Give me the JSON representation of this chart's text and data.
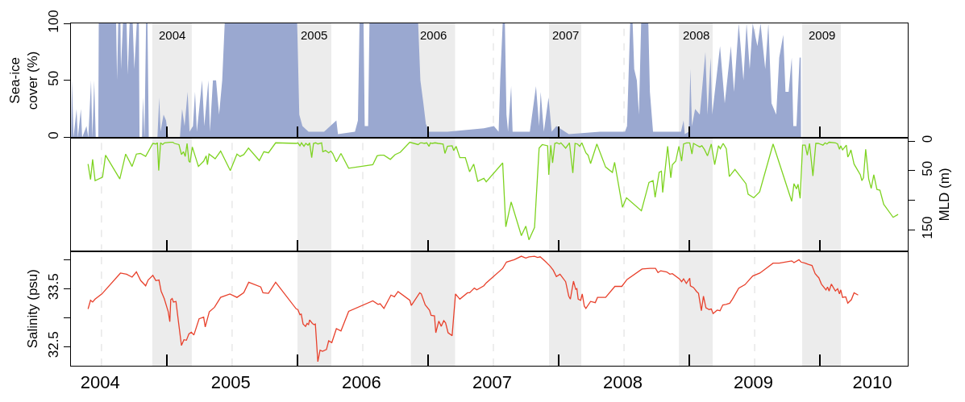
{
  "chart_data": [
    {
      "type": "area",
      "ylabel": "Sea-ice\ncover (%)",
      "color": "#9aa8d0",
      "xlim": [
        2004.266,
        2010.672
      ],
      "ylim": [
        0,
        100
      ],
      "yticks": [
        0,
        50,
        100
      ],
      "tick_labels": "y",
      "xticks": [
        {
          "value": 2005,
          "label": null
        },
        {
          "value": 2006,
          "label": null
        },
        {
          "value": 2007,
          "label": null
        },
        {
          "value": 2008,
          "label": null
        },
        {
          "value": 2009,
          "label": null
        },
        {
          "value": 2010,
          "label": null
        }
      ],
      "bands": [
        {
          "axis": "x",
          "from": 2004.889,
          "to": 2005.191,
          "label": "2004",
          "color": "#ececec"
        },
        {
          "axis": "x",
          "from": 2006.0,
          "to": 2006.259,
          "label": "2005",
          "color": "#ececec"
        },
        {
          "axis": "x",
          "from": 2006.868,
          "to": 2007.207,
          "label": "2006",
          "color": "#ececec"
        },
        {
          "axis": "x",
          "from": 2007.926,
          "to": 2008.173,
          "label": "2007",
          "color": "#ececec"
        },
        {
          "axis": "x",
          "from": 2008.92,
          "to": 2009.179,
          "label": "2008",
          "color": "#ececec"
        },
        {
          "axis": "x",
          "from": 2009.864,
          "to": 2010.16,
          "label": "2009",
          "color": "#ececec"
        }
      ],
      "ref_lines": [
        {
          "axis": "x",
          "value": 2007.5,
          "color": "#dcdcdc",
          "line_style": "dashed"
        },
        {
          "axis": "x",
          "value": 2008.5,
          "color": "#dcdcdc",
          "line_style": "dashed"
        },
        {
          "axis": "x",
          "value": 2009.5,
          "color": "#dcdcdc",
          "line_style": "dashed"
        }
      ],
      "x": [
        2004.267,
        2004.274,
        2004.286,
        2004.309,
        2004.319,
        2004.342,
        2004.352,
        2004.385,
        2004.399,
        2004.42,
        2004.43,
        2004.444,
        2004.456,
        2004.475,
        2004.479,
        2004.612,
        2004.619,
        2004.628,
        2004.645,
        2004.649,
        2004.664,
        2004.692,
        2004.701,
        2004.715,
        2004.739,
        2004.751,
        2004.77,
        2004.786,
        2004.791,
        2004.81,
        2004.817,
        2004.829,
        2004.841,
        2004.852,
        2004.862,
        2004.928,
        2004.942,
        2004.952,
        2004.975,
        2004.994,
        2005.011,
        2005.1,
        2005.117,
        2005.136,
        2005.159,
        2005.174,
        2005.2,
        2005.216,
        2005.23,
        2005.27,
        2005.287,
        2005.318,
        2005.33,
        2005.353,
        2005.377,
        2005.4,
        2005.424,
        2005.443,
        2005.998,
        2006.014,
        2006.038,
        2006.085,
        2006.204,
        2006.298,
        2006.31,
        2006.44,
        2006.463,
        2006.475,
        2006.506,
        2006.515,
        2006.541,
        2006.551,
        2006.924,
        2006.941,
        2006.964,
        2006.983,
        2007.007,
        2007.149,
        2007.427,
        2007.504,
        2007.54,
        2007.552,
        2007.571,
        2007.588,
        2007.6,
        2007.612,
        2007.636,
        2007.647,
        2007.695,
        2007.779,
        2007.826,
        2007.85,
        2007.862,
        2007.886,
        2007.922,
        2007.946,
        2007.982,
        2008.077,
        2008.316,
        2008.507,
        2008.523,
        2008.547,
        2008.566,
        2008.578,
        2008.598,
        2008.614,
        2008.631,
        2008.686,
        2008.698,
        2008.722,
        2008.793,
        2008.936,
        2008.956,
        2008.965,
        2008.996,
        2009.008,
        2009.02,
        2009.044,
        2009.08,
        2009.123,
        2009.139,
        2009.163,
        2009.175,
        2009.235,
        2009.271,
        2009.318,
        2009.342,
        2009.378,
        2009.414,
        2009.438,
        2009.462,
        2009.485,
        2009.521,
        2009.545,
        2009.581,
        2009.605,
        2009.629,
        2009.665,
        2009.688,
        2009.719,
        2009.736,
        2009.76,
        2009.784,
        2009.796,
        2009.82,
        2009.844,
        2009.853,
        2009.855
      ],
      "values": [
        0,
        50,
        0,
        25,
        0,
        25,
        0,
        10,
        0,
        50,
        0,
        50,
        0,
        0,
        100,
        100,
        50,
        100,
        100,
        60,
        100,
        100,
        55,
        100,
        100,
        60,
        100,
        100,
        0,
        0,
        35,
        0,
        100,
        100,
        0,
        0,
        35,
        5,
        20,
        15,
        0,
        0,
        25,
        10,
        40,
        5,
        10,
        40,
        5,
        50,
        10,
        50,
        5,
        50,
        50,
        20,
        50,
        100,
        100,
        20,
        10,
        5,
        5,
        15,
        3,
        5,
        15,
        100,
        100,
        10,
        10,
        100,
        100,
        50,
        30,
        12,
        5,
        5,
        8,
        10,
        5,
        50,
        100,
        100,
        20,
        5,
        45,
        5,
        5,
        5,
        45,
        10,
        40,
        5,
        35,
        5,
        10,
        3,
        5,
        5,
        10,
        100,
        100,
        60,
        50,
        20,
        100,
        100,
        40,
        5,
        5,
        5,
        15,
        3,
        5,
        60,
        10,
        25,
        20,
        75,
        20,
        70,
        20,
        80,
        30,
        80,
        40,
        100,
        50,
        100,
        60,
        100,
        80,
        100,
        60,
        100,
        30,
        20,
        70,
        90,
        40,
        40,
        70,
        10,
        10,
        70,
        70,
        0
      ]
    },
    {
      "type": "line",
      "y2label": "MLD (m)",
      "xlim": [
        2004.266,
        2010.672
      ],
      "y2lim": [
        187,
        -6
      ],
      "y2ticks": [
        0,
        50,
        {
          "value": 100,
          "label": null
        },
        150
      ],
      "tick_labels": "y",
      "xticks": [
        {
          "value": 2005,
          "label": null
        },
        {
          "value": 2006,
          "label": null
        },
        {
          "value": 2007,
          "label": null
        },
        {
          "value": 2008,
          "label": null
        },
        {
          "value": 2009,
          "label": null
        },
        {
          "value": 2010,
          "label": null
        }
      ],
      "bands": [
        {
          "axis": "x",
          "from": 2004.889,
          "to": 2005.191,
          "color": "#ececec"
        },
        {
          "axis": "x",
          "from": 2006.0,
          "to": 2006.259,
          "color": "#ececec"
        },
        {
          "axis": "x",
          "from": 2006.868,
          "to": 2007.207,
          "color": "#ececec"
        },
        {
          "axis": "x",
          "from": 2007.926,
          "to": 2008.173,
          "color": "#ececec"
        },
        {
          "axis": "x",
          "from": 2008.92,
          "to": 2009.179,
          "color": "#ececec"
        },
        {
          "axis": "x",
          "from": 2009.864,
          "to": 2010.16,
          "color": "#ececec"
        }
      ],
      "ref_lines": [
        {
          "axis": "x",
          "value": 2004.5,
          "color": "#dcdcdc",
          "line_style": "dashed"
        },
        {
          "axis": "x",
          "value": 2005.5,
          "color": "#dcdcdc",
          "line_style": "dashed"
        },
        {
          "axis": "x",
          "value": 2006.5,
          "color": "#dcdcdc",
          "line_style": "dashed"
        },
        {
          "axis": "x",
          "value": 2007.5,
          "color": "#dcdcdc",
          "line_style": "dashed"
        },
        {
          "axis": "x",
          "value": 2008.5,
          "color": "#dcdcdc",
          "line_style": "dashed"
        },
        {
          "axis": "x",
          "value": 2009.5,
          "color": "#dcdcdc",
          "line_style": "dashed"
        }
      ],
      "series": [
        {
          "color": "#7ed321",
          "axis": "y2",
          "x": [
            2004.397,
            2004.416,
            2004.432,
            2004.451,
            2004.508,
            2004.531,
            2004.64,
            2004.685,
            2004.734,
            2004.767,
            2004.798,
            2004.838,
            2004.893,
            2004.916,
            2004.928,
            2004.938,
            2004.952,
            2004.968,
            2004.982,
            2005.023,
            2005.046,
            2005.058,
            2005.093,
            2005.112,
            2005.127,
            2005.141,
            2005.155,
            2005.169,
            2005.178,
            2005.195,
            2005.242,
            2005.282,
            2005.301,
            2005.311,
            2005.323,
            2005.37,
            2005.412,
            2005.486,
            2005.537,
            2005.561,
            2005.589,
            2005.625,
            2005.708,
            2005.743,
            2005.778,
            2005.833,
            2005.991,
            2006.003,
            2006.019,
            2006.031,
            2006.05,
            2006.064,
            2006.081,
            2006.093,
            2006.109,
            2006.123,
            2006.14,
            2006.156,
            2006.185,
            2006.194,
            2006.215,
            2006.239,
            2006.256,
            2006.27,
            2006.298,
            2006.333,
            2006.392,
            2006.577,
            2006.61,
            2006.633,
            2006.662,
            2006.711,
            2006.747,
            2006.787,
            2006.86,
            2006.924,
            2006.941,
            2006.955,
            2006.971,
            2006.99,
            2007.007,
            2007.018,
            2007.03,
            2007.054,
            2007.077,
            2007.115,
            2007.129,
            2007.148,
            2007.184,
            2007.196,
            2007.215,
            2007.243,
            2007.285,
            2007.318,
            2007.349,
            2007.38,
            2007.427,
            2007.445,
            2007.571,
            2007.595,
            2007.636,
            2007.714,
            2007.748,
            2007.772,
            2007.815,
            2007.85,
            2007.874,
            2007.915,
            2007.924,
            2007.939,
            2007.953,
            2007.97,
            2007.986,
            2008.005,
            2008.017,
            2008.053,
            2008.082,
            2008.108,
            2008.125,
            2008.144,
            2008.161,
            2008.177,
            2008.208,
            2008.225,
            2008.244,
            2008.292,
            2008.359,
            2008.411,
            2008.428,
            2008.488,
            2008.519,
            2008.633,
            2008.691,
            2008.722,
            2008.738,
            2008.769,
            2008.786,
            2008.796,
            2008.834,
            2008.858,
            2008.87,
            2008.896,
            2008.92,
            2008.941,
            2008.956,
            2008.979,
            2009.003,
            2009.02,
            2009.032,
            2009.056,
            2009.08,
            2009.096,
            2009.115,
            2009.139,
            2009.168,
            2009.194,
            2009.223,
            2009.237,
            2009.259,
            2009.283,
            2009.306,
            2009.349,
            2009.433,
            2009.45,
            2009.493,
            2009.538,
            2009.641,
            2009.784,
            2009.801,
            2009.82,
            2009.832,
            2009.848,
            2009.867,
            2009.887,
            2009.903,
            2009.92,
            2009.946,
            2009.968,
            2009.987,
            2010.023,
            2010.039,
            2010.053,
            2010.07,
            2010.118,
            2010.135,
            2010.149,
            2010.159,
            2010.173,
            2010.202,
            2010.213,
            2010.225,
            2010.237,
            2010.261,
            2010.309,
            2010.321,
            2010.333,
            2010.35,
            2010.373,
            2010.392,
            2010.412,
            2010.436,
            2010.459,
            2010.488,
            2010.56,
            2010.598
          ],
          "values": [
            39,
            65,
            31,
            67,
            61,
            24,
            64,
            22,
            43,
            22,
            21,
            26,
            4,
            5,
            3,
            50,
            3,
            6,
            3,
            2,
            2,
            4,
            6,
            23,
            18,
            26,
            4,
            34,
            36,
            10,
            43,
            34,
            25,
            40,
            22,
            30,
            17,
            50,
            22,
            26,
            23,
            12,
            33,
            18,
            20,
            3,
            4,
            3,
            8,
            3,
            9,
            4,
            7,
            3,
            28,
            4,
            3,
            5,
            3,
            18,
            16,
            20,
            17,
            21,
            35,
            21,
            46,
            40,
            25,
            24,
            24,
            31,
            23,
            19,
            2,
            6,
            3,
            3,
            4,
            3,
            9,
            3,
            4,
            3,
            4,
            5,
            21,
            9,
            8,
            16,
            9,
            28,
            28,
            52,
            39,
            68,
            63,
            69,
            37,
            145,
            103,
            160,
            144,
            167,
            146,
            12,
            6,
            8,
            57,
            7,
            37,
            4,
            3,
            5,
            3,
            12,
            3,
            54,
            4,
            5,
            9,
            3,
            20,
            24,
            38,
            5,
            44,
            53,
            36,
            112,
            96,
            118,
            70,
            67,
            95,
            53,
            51,
            87,
            9,
            62,
            40,
            34,
            9,
            34,
            5,
            3,
            3,
            22,
            4,
            7,
            10,
            8,
            14,
            25,
            5,
            40,
            8,
            13,
            4,
            13,
            60,
            48,
            72,
            90,
            96,
            86,
            5,
            102,
            72,
            81,
            73,
            97,
            7,
            7,
            24,
            4,
            59,
            4,
            4,
            7,
            3,
            5,
            2,
            3,
            5,
            14,
            8,
            15,
            7,
            27,
            22,
            15,
            39,
            57,
            67,
            62,
            14,
            64,
            80,
            57,
            82,
            83,
            107,
            129,
            124
          ]
        }
      ]
    },
    {
      "type": "line",
      "ylabel": "Salinity (psu)",
      "xlim": [
        2004.266,
        2010.672
      ],
      "ylim": [
        32.17,
        34.14
      ],
      "yticks": [
        {
          "value": 34.0,
          "label": null
        },
        33.5,
        {
          "value": 33.0,
          "label": null
        },
        32.5
      ],
      "xticks": [
        {
          "value": 2005,
          "label": null
        },
        {
          "value": 2006,
          "label": null
        },
        {
          "value": 2007,
          "label": null
        },
        {
          "value": 2008,
          "label": null
        },
        {
          "value": 2009,
          "label": null
        },
        {
          "value": 2010,
          "label": null
        },
        {
          "value": 2004.49,
          "label": "2004"
        },
        {
          "value": 2005.49,
          "label": "2005"
        },
        {
          "value": 2006.49,
          "label": "2006"
        },
        {
          "value": 2007.49,
          "label": "2007"
        },
        {
          "value": 2008.49,
          "label": "2008"
        },
        {
          "value": 2009.49,
          "label": "2009"
        },
        {
          "value": 2010.4,
          "label": "2010"
        }
      ],
      "bands": [
        {
          "axis": "x",
          "from": 2004.889,
          "to": 2005.191,
          "color": "#ececec"
        },
        {
          "axis": "x",
          "from": 2006.0,
          "to": 2006.259,
          "color": "#ececec"
        },
        {
          "axis": "x",
          "from": 2006.868,
          "to": 2007.207,
          "color": "#ececec"
        },
        {
          "axis": "x",
          "from": 2007.926,
          "to": 2008.173,
          "color": "#ececec"
        },
        {
          "axis": "x",
          "from": 2008.92,
          "to": 2009.179,
          "color": "#ececec"
        },
        {
          "axis": "x",
          "from": 2009.864,
          "to": 2010.16,
          "color": "#ececec"
        }
      ],
      "ref_lines": [
        {
          "axis": "x",
          "value": 2004.5,
          "color": "#dcdcdc",
          "line_style": "dashed"
        },
        {
          "axis": "x",
          "value": 2005.5,
          "color": "#dcdcdc",
          "line_style": "dashed"
        },
        {
          "axis": "x",
          "value": 2006.5,
          "color": "#dcdcdc",
          "line_style": "dashed"
        },
        {
          "axis": "x",
          "value": 2007.5,
          "color": "#dcdcdc",
          "line_style": "dashed"
        },
        {
          "axis": "x",
          "value": 2008.5,
          "color": "#dcdcdc",
          "line_style": "dashed"
        },
        {
          "axis": "x",
          "value": 2009.5,
          "color": "#dcdcdc",
          "line_style": "dashed"
        }
      ],
      "series": [
        {
          "color": "#e8412c",
          "x": [
            2004.397,
            2004.416,
            2004.432,
            2004.451,
            2004.503,
            2004.645,
            2004.692,
            2004.734,
            2004.767,
            2004.8,
            2004.838,
            2004.857,
            2004.893,
            2004.916,
            2004.94,
            2004.956,
            2004.98,
            2005.011,
            2005.023,
            2005.03,
            2005.041,
            2005.051,
            2005.07,
            2005.089,
            2005.112,
            2005.131,
            2005.15,
            2005.169,
            2005.188,
            2005.207,
            2005.247,
            2005.282,
            2005.294,
            2005.325,
            2005.365,
            2005.412,
            2005.483,
            2005.537,
            2005.589,
            2005.627,
            2005.719,
            2005.736,
            2005.778,
            2005.833,
            2005.991,
            2006.003,
            2006.019,
            2006.029,
            2006.043,
            2006.062,
            2006.074,
            2006.085,
            2006.093,
            2006.114,
            2006.128,
            2006.137,
            2006.156,
            2006.173,
            2006.192,
            2006.222,
            2006.239,
            2006.263,
            2006.298,
            2006.333,
            2006.392,
            2006.577,
            2006.617,
            2006.633,
            2006.662,
            2006.716,
            2006.742,
            2006.77,
            2006.86,
            2006.872,
            2006.936,
            2006.948,
            2006.978,
            2007.011,
            2007.023,
            2007.049,
            2007.059,
            2007.082,
            2007.101,
            2007.12,
            2007.134,
            2007.153,
            2007.184,
            2007.21,
            2007.243,
            2007.302,
            2007.318,
            2007.354,
            2007.373,
            2007.427,
            2007.445,
            2007.571,
            2007.6,
            2007.659,
            2007.714,
            2007.748,
            2007.772,
            2007.815,
            2007.838,
            2007.858,
            2007.874,
            2007.898,
            2007.934,
            2007.958,
            2007.982,
            2008.01,
            2008.053,
            2008.077,
            2008.089,
            2008.113,
            2008.13,
            2008.139,
            2008.149,
            2008.168,
            2008.18,
            2008.196,
            2008.208,
            2008.244,
            2008.28,
            2008.297,
            2008.359,
            2008.43,
            2008.483,
            2008.523,
            2008.638,
            2008.698,
            2008.741,
            2008.76,
            2008.781,
            2008.827,
            2008.851,
            2008.87,
            2008.924,
            2008.941,
            2008.956,
            2008.977,
            2009.003,
            2009.008,
            2009.032,
            2009.056,
            2009.07,
            2009.092,
            2009.108,
            2009.127,
            2009.151,
            2009.168,
            2009.182,
            2009.213,
            2009.235,
            2009.256,
            2009.28,
            2009.309,
            2009.33,
            2009.378,
            2009.426,
            2009.485,
            2009.54,
            2009.641,
            2009.688,
            2009.784,
            2009.801,
            2009.839,
            2009.855,
            2009.886,
            2009.91,
            2009.939,
            2009.963,
            2009.982,
            2009.991,
            2010.011,
            2010.046,
            2010.058,
            2010.07,
            2010.087,
            2010.118,
            2010.135,
            2010.149,
            2010.159,
            2010.173,
            2010.197,
            2010.213,
            2010.24,
            2010.261,
            2010.292
          ],
          "values": [
            33.15,
            33.3,
            33.27,
            33.32,
            33.41,
            33.77,
            33.75,
            33.7,
            33.79,
            33.64,
            33.55,
            33.65,
            33.73,
            33.64,
            33.65,
            33.46,
            33.33,
            33.1,
            32.93,
            33.31,
            33.33,
            33.27,
            33.28,
            32.93,
            32.52,
            32.62,
            32.61,
            32.72,
            32.75,
            32.7,
            32.98,
            33.01,
            32.84,
            33.1,
            33.18,
            33.35,
            33.41,
            33.35,
            33.43,
            33.61,
            33.53,
            33.43,
            33.42,
            33.61,
            33.15,
            33.14,
            33.05,
            33.06,
            32.89,
            32.85,
            32.9,
            32.88,
            32.96,
            32.9,
            32.88,
            32.89,
            32.24,
            32.44,
            32.42,
            32.45,
            32.6,
            32.57,
            32.81,
            32.77,
            33.11,
            33.29,
            33.23,
            33.24,
            33.16,
            33.39,
            33.36,
            33.45,
            33.3,
            33.21,
            33.43,
            33.41,
            33.22,
            33.13,
            33.04,
            33.03,
            32.74,
            32.94,
            32.85,
            32.95,
            32.91,
            32.74,
            32.69,
            33.41,
            33.32,
            33.43,
            33.43,
            33.51,
            33.48,
            33.55,
            33.6,
            33.85,
            33.96,
            34.0,
            34.06,
            34.03,
            34.05,
            34.06,
            34.04,
            34.05,
            34.02,
            33.97,
            33.89,
            33.82,
            33.71,
            33.75,
            33.62,
            33.37,
            33.32,
            33.63,
            33.49,
            33.5,
            33.32,
            33.3,
            33.41,
            33.2,
            33.16,
            33.28,
            33.26,
            33.35,
            33.35,
            33.54,
            33.54,
            33.66,
            33.84,
            33.85,
            33.85,
            33.78,
            33.81,
            33.79,
            33.75,
            33.76,
            33.67,
            33.62,
            33.67,
            33.59,
            33.68,
            33.55,
            33.52,
            33.45,
            33.42,
            33.12,
            33.37,
            33.17,
            33.14,
            33.15,
            33.07,
            33.13,
            33.12,
            33.22,
            33.23,
            33.25,
            33.32,
            33.51,
            33.57,
            33.72,
            33.77,
            33.94,
            33.94,
            33.98,
            33.95,
            34.0,
            33.96,
            33.94,
            33.92,
            33.9,
            33.76,
            33.71,
            33.69,
            33.58,
            33.48,
            33.53,
            33.46,
            33.58,
            33.46,
            33.5,
            33.41,
            33.48,
            33.35,
            33.36,
            33.25,
            33.31,
            33.43,
            33.39
          ]
        }
      ]
    }
  ]
}
